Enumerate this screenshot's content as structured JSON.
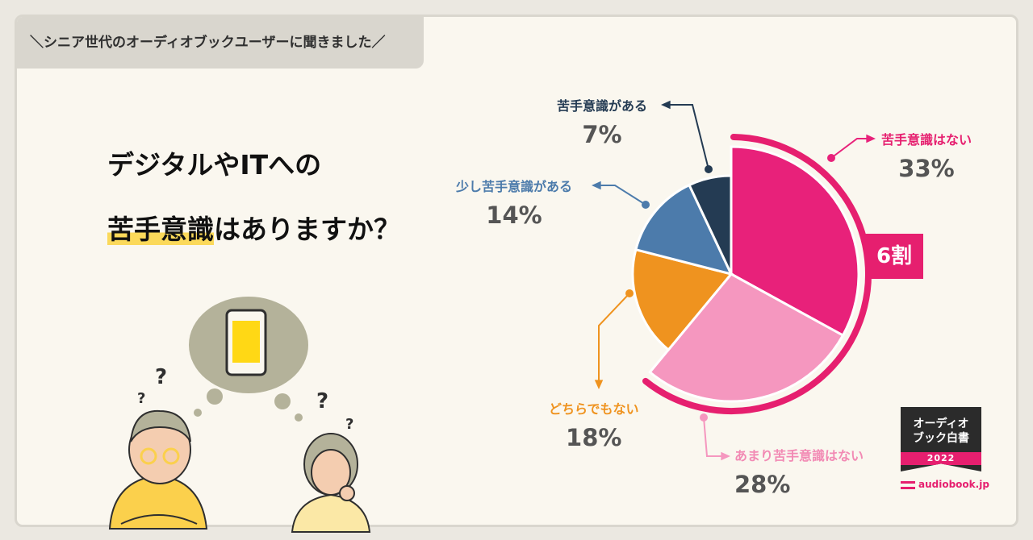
{
  "banner": "＼シニア世代のオーディオブックユーザーに聞きました／",
  "headline": {
    "line1": "デジタルやITへの",
    "line2_mark": "苦手意識",
    "line2_rest": "はありますか？"
  },
  "chart_data": {
    "type": "pie",
    "title": "デジタルやITへの苦手意識はありますか？",
    "slices": [
      {
        "label": "苦手意識はない",
        "value": 33,
        "display": "33%",
        "color": "#e8217a"
      },
      {
        "label": "あまり苦手意識はない",
        "value": 28,
        "display": "28%",
        "color": "#f597bf"
      },
      {
        "label": "どちらでもない",
        "value": 18,
        "display": "18%",
        "color": "#ef931f"
      },
      {
        "label": "少し苦手意識がある",
        "value": 14,
        "display": "14%",
        "color": "#4c7bab"
      },
      {
        "label": "苦手意識がある",
        "value": 7,
        "display": "7%",
        "color": "#243b53"
      }
    ],
    "start_angle_deg": 0,
    "direction": "clockwise",
    "callout": {
      "text": "6割",
      "color": "#e61f6f"
    }
  },
  "badge": {
    "line1": "オーディオ",
    "line2": "ブック白書",
    "year": "2022"
  },
  "brand": "audiobook.jp",
  "colors": {
    "background": "#faf7ef",
    "frame": "#d9d6ce",
    "accent": "#e61f6f",
    "highlight": "#fbd95a"
  },
  "icons": [
    "smartphone-icon",
    "question-mark-icon",
    "audiobook-logo-icon"
  ]
}
